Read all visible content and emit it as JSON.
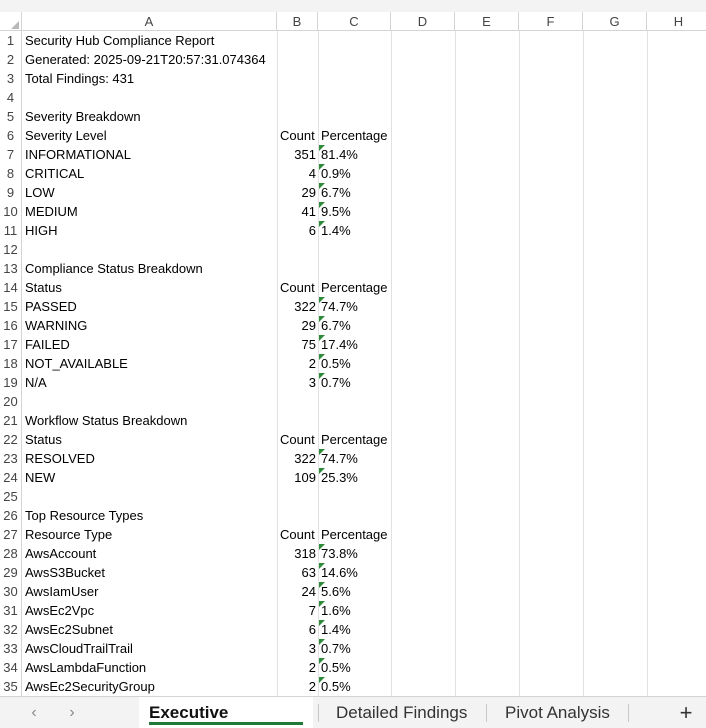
{
  "columns": [
    "A",
    "B",
    "C",
    "D",
    "E",
    "F",
    "G",
    "H"
  ],
  "rows": [
    {
      "n": "1",
      "a": "Security Hub Compliance Report",
      "b": "",
      "c": ""
    },
    {
      "n": "2",
      "a": "Generated: 2025-09-21T20:57:31.074364",
      "b": "",
      "c": ""
    },
    {
      "n": "3",
      "a": "Total Findings: 431",
      "b": "",
      "c": ""
    },
    {
      "n": "4",
      "a": "",
      "b": "",
      "c": ""
    },
    {
      "n": "5",
      "a": "Severity Breakdown",
      "b": "",
      "c": ""
    },
    {
      "n": "6",
      "a": "Severity Level",
      "b": "Count",
      "c": "Percentage"
    },
    {
      "n": "7",
      "a": "INFORMATIONAL",
      "b": "351",
      "c": "81.4%"
    },
    {
      "n": "8",
      "a": "CRITICAL",
      "b": "4",
      "c": "0.9%"
    },
    {
      "n": "9",
      "a": "LOW",
      "b": "29",
      "c": "6.7%"
    },
    {
      "n": "10",
      "a": "MEDIUM",
      "b": "41",
      "c": "9.5%"
    },
    {
      "n": "11",
      "a": "HIGH",
      "b": "6",
      "c": "1.4%"
    },
    {
      "n": "12",
      "a": "",
      "b": "",
      "c": ""
    },
    {
      "n": "13",
      "a": "Compliance Status Breakdown",
      "b": "",
      "c": ""
    },
    {
      "n": "14",
      "a": "Status",
      "b": "Count",
      "c": "Percentage"
    },
    {
      "n": "15",
      "a": "PASSED",
      "b": "322",
      "c": "74.7%"
    },
    {
      "n": "16",
      "a": "WARNING",
      "b": "29",
      "c": "6.7%"
    },
    {
      "n": "17",
      "a": "FAILED",
      "b": "75",
      "c": "17.4%"
    },
    {
      "n": "18",
      "a": "NOT_AVAILABLE",
      "b": "2",
      "c": "0.5%"
    },
    {
      "n": "19",
      "a": "N/A",
      "b": "3",
      "c": "0.7%"
    },
    {
      "n": "20",
      "a": "",
      "b": "",
      "c": ""
    },
    {
      "n": "21",
      "a": "Workflow Status Breakdown",
      "b": "",
      "c": ""
    },
    {
      "n": "22",
      "a": "Status",
      "b": "Count",
      "c": "Percentage"
    },
    {
      "n": "23",
      "a": "RESOLVED",
      "b": "322",
      "c": "74.7%"
    },
    {
      "n": "24",
      "a": "NEW",
      "b": "109",
      "c": "25.3%"
    },
    {
      "n": "25",
      "a": "",
      "b": "",
      "c": ""
    },
    {
      "n": "26",
      "a": "Top Resource Types",
      "b": "",
      "c": ""
    },
    {
      "n": "27",
      "a": "Resource Type",
      "b": "Count",
      "c": "Percentage"
    },
    {
      "n": "28",
      "a": "AwsAccount",
      "b": "318",
      "c": "73.8%"
    },
    {
      "n": "29",
      "a": "AwsS3Bucket",
      "b": "63",
      "c": "14.6%"
    },
    {
      "n": "30",
      "a": "AwsIamUser",
      "b": "24",
      "c": "5.6%"
    },
    {
      "n": "31",
      "a": "AwsEc2Vpc",
      "b": "7",
      "c": "1.6%"
    },
    {
      "n": "32",
      "a": "AwsEc2Subnet",
      "b": "6",
      "c": "1.4%"
    },
    {
      "n": "33",
      "a": "AwsCloudTrailTrail",
      "b": "3",
      "c": "0.7%"
    },
    {
      "n": "34",
      "a": "AwsLambdaFunction",
      "b": "2",
      "c": "0.5%"
    },
    {
      "n": "35",
      "a": "AwsEc2SecurityGroup",
      "b": "2",
      "c": "0.5%"
    }
  ],
  "sheet_tabs": {
    "active": "Executive Summary",
    "tab2": "Detailed Findings",
    "tab3": "Pivot Analysis"
  },
  "icons": {
    "prev": "chevron-left-icon",
    "next": "chevron-right-icon",
    "add": "plus-icon"
  },
  "colors": {
    "accent": "#1e7a36",
    "error_indicator": "#2e8b3a"
  }
}
